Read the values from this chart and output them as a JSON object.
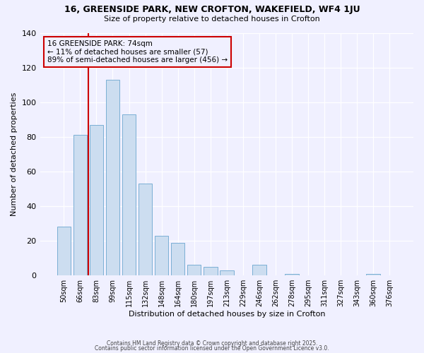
{
  "title": "16, GREENSIDE PARK, NEW CROFTON, WAKEFIELD, WF4 1JU",
  "subtitle": "Size of property relative to detached houses in Crofton",
  "xlabel": "Distribution of detached houses by size in Crofton",
  "ylabel": "Number of detached properties",
  "bar_labels": [
    "50sqm",
    "66sqm",
    "83sqm",
    "99sqm",
    "115sqm",
    "132sqm",
    "148sqm",
    "164sqm",
    "180sqm",
    "197sqm",
    "213sqm",
    "229sqm",
    "246sqm",
    "262sqm",
    "278sqm",
    "295sqm",
    "311sqm",
    "327sqm",
    "343sqm",
    "360sqm",
    "376sqm"
  ],
  "bar_values": [
    28,
    81,
    87,
    113,
    93,
    53,
    23,
    19,
    6,
    5,
    3,
    0,
    6,
    0,
    1,
    0,
    0,
    0,
    0,
    1,
    0
  ],
  "bar_color": "#ccddf0",
  "bar_edgecolor": "#7aafd4",
  "vline_x": 1.5,
  "vline_color": "#cc0000",
  "annotation_title": "16 GREENSIDE PARK: 74sqm",
  "annotation_line1": "← 11% of detached houses are smaller (57)",
  "annotation_line2": "89% of semi-detached houses are larger (456) →",
  "annotation_box_edgecolor": "#cc0000",
  "ylim": [
    0,
    140
  ],
  "yticks": [
    0,
    20,
    40,
    60,
    80,
    100,
    120,
    140
  ],
  "footer1": "Contains HM Land Registry data © Crown copyright and database right 2025.",
  "footer2": "Contains public sector information licensed under the Open Government Licence v3.0.",
  "bg_color": "#f0f0ff"
}
